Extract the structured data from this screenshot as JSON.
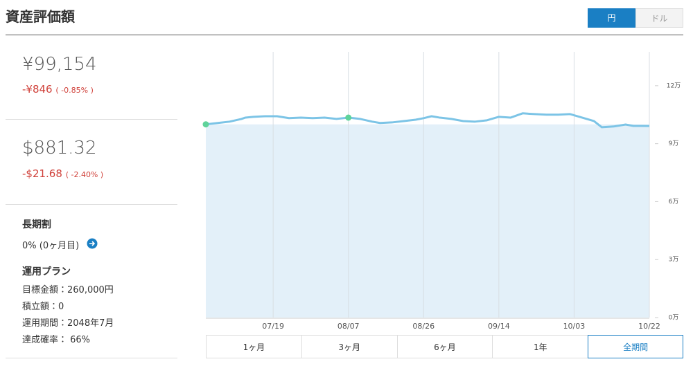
{
  "header": {
    "title": "資産評価額",
    "currency_toggle": [
      "円",
      "ドル"
    ]
  },
  "summary": {
    "jpy": {
      "value": "¥99,154",
      "change": "-¥846",
      "change_pct": "( -0.85% )"
    },
    "usd": {
      "value": "$881.32",
      "change": "-$21.68",
      "change_pct": "( -2.40% )"
    }
  },
  "long_term": {
    "label": "長期割",
    "value": "0% (0ヶ月目)"
  },
  "plan": {
    "title": "運用プラン",
    "items": [
      "目標金額：260,000円",
      "積立額：0",
      "運用期間：2048年7月",
      "達成確率： 66%"
    ]
  },
  "chart_data": {
    "type": "line",
    "xlim": [
      "07/02",
      "10/22"
    ],
    "xticks": [
      "07/19",
      "08/07",
      "08/26",
      "09/14",
      "10/03",
      "10/22"
    ],
    "ylim": [
      0,
      137500
    ],
    "yticks": [
      {
        "value": 0,
        "label": "0万"
      },
      {
        "value": 30000,
        "label": "3万"
      },
      {
        "value": 60000,
        "label": "6万"
      },
      {
        "value": 90000,
        "label": "9万"
      },
      {
        "value": 120000,
        "label": "12万"
      }
    ],
    "series": [
      {
        "color": "#e3f0f9",
        "style": "area",
        "x": [
          "07/02",
          "10/22"
        ],
        "values": [
          100000,
          100000
        ]
      },
      {
        "color": "#7cc4e6",
        "style": "line",
        "x": [
          "07/02",
          "07/05",
          "07/08",
          "07/11",
          "07/12",
          "07/14",
          "07/17",
          "07/20",
          "07/23",
          "07/26",
          "07/29",
          "08/01",
          "08/04",
          "08/07",
          "08/10",
          "08/13",
          "08/15",
          "08/18",
          "08/21",
          "08/24",
          "08/26",
          "08/28",
          "08/30",
          "09/02",
          "09/05",
          "09/08",
          "09/11",
          "09/14",
          "09/17",
          "09/20",
          "09/23",
          "09/26",
          "09/29",
          "10/02",
          "10/05",
          "10/08",
          "10/10",
          "10/13",
          "10/16",
          "10/18",
          "10/20",
          "10/22"
        ],
        "values": [
          100000,
          100700,
          101400,
          102800,
          103500,
          103900,
          104200,
          104200,
          103200,
          103500,
          103200,
          103500,
          102800,
          103500,
          102800,
          101400,
          100700,
          101000,
          101700,
          102400,
          103200,
          104200,
          103500,
          102800,
          101700,
          101400,
          102100,
          103900,
          103500,
          105700,
          105300,
          105000,
          105000,
          105300,
          103500,
          101700,
          98500,
          98900,
          99900,
          99200,
          99200,
          99154
        ]
      },
      {
        "color": "#5fd39a",
        "style": "dots",
        "x": [
          "07/02",
          "08/07"
        ],
        "values": [
          100000,
          103500
        ]
      }
    ]
  },
  "periods": [
    "1ヶ月",
    "3ヶ月",
    "6ヶ月",
    "1年",
    "全期間"
  ]
}
